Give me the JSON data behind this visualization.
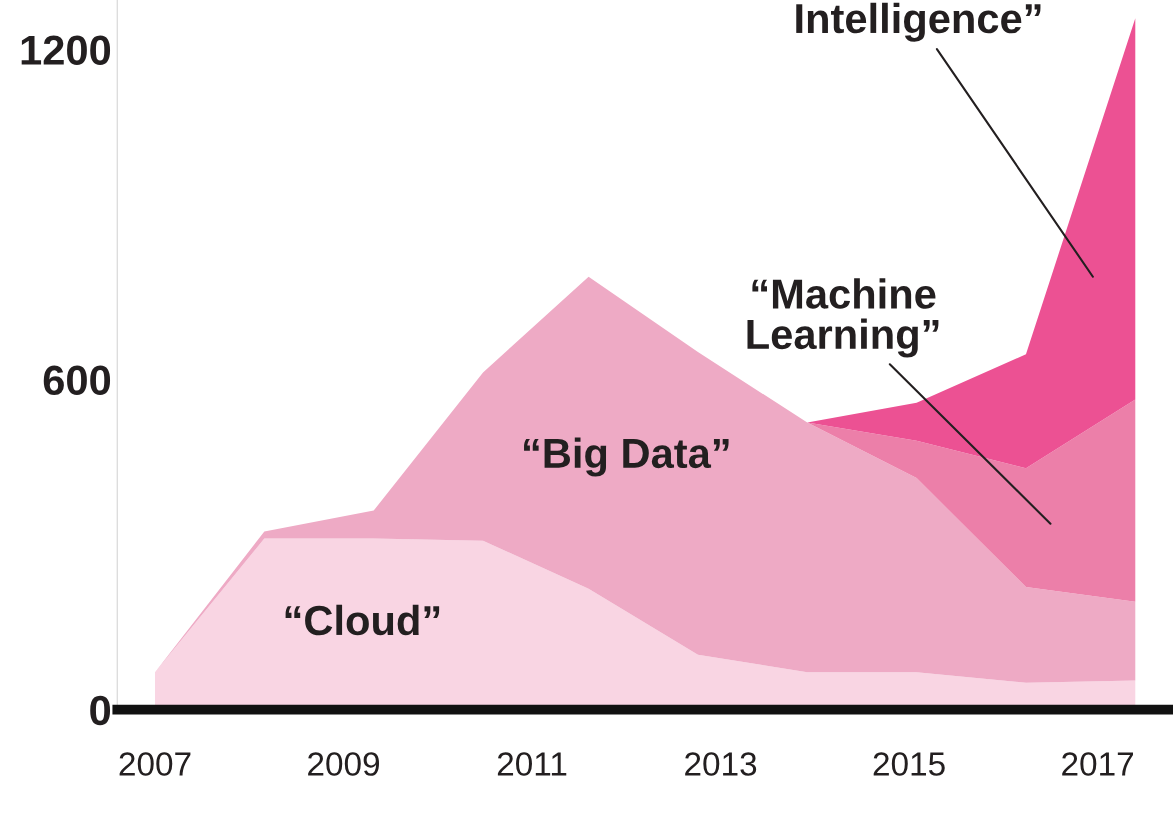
{
  "chart_data": {
    "type": "area",
    "stacked": true,
    "series": [
      {
        "name": "“Cloud”",
        "color": "#f9d5e3",
        "values": [
          68,
          311,
          311,
          307,
          220,
          100,
          68,
          68,
          49,
          53
        ]
      },
      {
        "name": "“Big Data”",
        "color": "#eeaac5",
        "values": [
          0,
          13,
          51,
          306,
          567,
          550,
          454,
          353,
          174,
          143
        ]
      },
      {
        "name": "“Machine\nLearning”",
        "color": "#ec7fa9",
        "values": [
          null,
          null,
          null,
          null,
          null,
          null,
          0,
          68,
          216,
          368
        ]
      },
      {
        "name": "Intelligence”",
        "color": "#ec5193",
        "values": [
          null,
          null,
          null,
          null,
          null,
          null,
          0,
          69,
          207,
          693
        ]
      }
    ],
    "x": [
      2007,
      2008.16,
      2009.32,
      2010.48,
      2011.6,
      2012.76,
      2013.92,
      2015.08,
      2016.24,
      2017.4
    ],
    "xlim": [
      2006.6,
      2017.8
    ],
    "xticks": [
      2007,
      2009,
      2011,
      2013,
      2015,
      2017
    ],
    "ylim": [
      0,
      1290
    ],
    "yticks": [
      0,
      600,
      1200
    ],
    "grid": false,
    "legend": false
  }
}
